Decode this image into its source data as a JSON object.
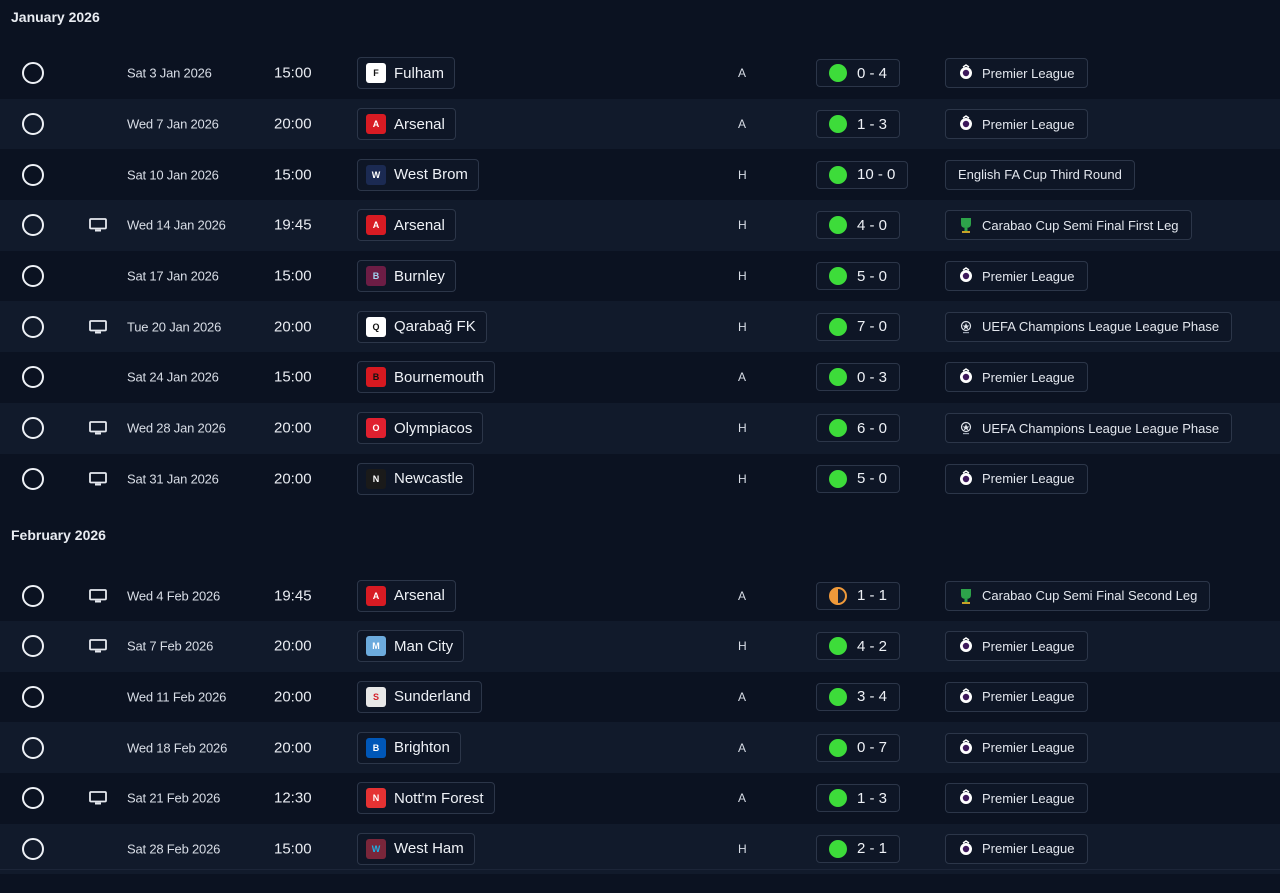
{
  "colors": {
    "win": "#3ddc3a",
    "draw": "#f09a3a",
    "background": "#0b1221",
    "row_alt": "#111a2b"
  },
  "months": [
    {
      "label": "January 2026",
      "fixtures": [
        {
          "date": "Sat 3 Jan 2026",
          "time": "15:00",
          "tv": false,
          "opponent": "Fulham",
          "crest": "fulham-crest-icon",
          "venue": "A",
          "result": "0 - 4",
          "outcome": "win",
          "competition": "Premier League",
          "comp_icon": "premier-league-icon"
        },
        {
          "date": "Wed 7 Jan 2026",
          "time": "20:00",
          "tv": false,
          "opponent": "Arsenal",
          "crest": "arsenal-crest-icon",
          "venue": "A",
          "result": "1 - 3",
          "outcome": "win",
          "competition": "Premier League",
          "comp_icon": "premier-league-icon"
        },
        {
          "date": "Sat 10 Jan 2026",
          "time": "15:00",
          "tv": false,
          "opponent": "West Brom",
          "crest": "west-brom-crest-icon",
          "venue": "H",
          "result": "10 - 0",
          "outcome": "win",
          "competition": "English FA Cup Third Round",
          "comp_icon": ""
        },
        {
          "date": "Wed 14 Jan 2026",
          "time": "19:45",
          "tv": true,
          "opponent": "Arsenal",
          "crest": "arsenal-crest-icon",
          "venue": "H",
          "result": "4 - 0",
          "outcome": "win",
          "competition": "Carabao Cup Semi Final First Leg",
          "comp_icon": "carabao-cup-icon"
        },
        {
          "date": "Sat 17 Jan 2026",
          "time": "15:00",
          "tv": false,
          "opponent": "Burnley",
          "crest": "burnley-crest-icon",
          "venue": "H",
          "result": "5 - 0",
          "outcome": "win",
          "competition": "Premier League",
          "comp_icon": "premier-league-icon"
        },
        {
          "date": "Tue 20 Jan 2026",
          "time": "20:00",
          "tv": true,
          "opponent": "Qarabağ FK",
          "crest": "qarabag-crest-icon",
          "venue": "H",
          "result": "7 - 0",
          "outcome": "win",
          "competition": "UEFA Champions League League Phase",
          "comp_icon": "champions-league-icon"
        },
        {
          "date": "Sat 24 Jan 2026",
          "time": "15:00",
          "tv": false,
          "opponent": "Bournemouth",
          "crest": "bournemouth-crest-icon",
          "venue": "A",
          "result": "0 - 3",
          "outcome": "win",
          "competition": "Premier League",
          "comp_icon": "premier-league-icon"
        },
        {
          "date": "Wed 28 Jan 2026",
          "time": "20:00",
          "tv": true,
          "opponent": "Olympiacos",
          "crest": "olympiacos-crest-icon",
          "venue": "H",
          "result": "6 - 0",
          "outcome": "win",
          "competition": "UEFA Champions League League Phase",
          "comp_icon": "champions-league-icon"
        },
        {
          "date": "Sat 31 Jan 2026",
          "time": "20:00",
          "tv": true,
          "opponent": "Newcastle",
          "crest": "newcastle-crest-icon",
          "venue": "H",
          "result": "5 - 0",
          "outcome": "win",
          "competition": "Premier League",
          "comp_icon": "premier-league-icon"
        }
      ]
    },
    {
      "label": "February 2026",
      "fixtures": [
        {
          "date": "Wed 4 Feb 2026",
          "time": "19:45",
          "tv": true,
          "opponent": "Arsenal",
          "crest": "arsenal-crest-icon",
          "venue": "A",
          "result": "1 - 1",
          "outcome": "draw",
          "competition": "Carabao Cup Semi Final Second Leg",
          "comp_icon": "carabao-cup-icon"
        },
        {
          "date": "Sat 7 Feb 2026",
          "time": "20:00",
          "tv": true,
          "opponent": "Man City",
          "crest": "man-city-crest-icon",
          "venue": "H",
          "result": "4 - 2",
          "outcome": "win",
          "competition": "Premier League",
          "comp_icon": "premier-league-icon"
        },
        {
          "date": "Wed 11 Feb 2026",
          "time": "20:00",
          "tv": false,
          "opponent": "Sunderland",
          "crest": "sunderland-crest-icon",
          "venue": "A",
          "result": "3 - 4",
          "outcome": "win",
          "competition": "Premier League",
          "comp_icon": "premier-league-icon"
        },
        {
          "date": "Wed 18 Feb 2026",
          "time": "20:00",
          "tv": false,
          "opponent": "Brighton",
          "crest": "brighton-crest-icon",
          "venue": "A",
          "result": "0 - 7",
          "outcome": "win",
          "competition": "Premier League",
          "comp_icon": "premier-league-icon"
        },
        {
          "date": "Sat 21 Feb 2026",
          "time": "12:30",
          "tv": true,
          "opponent": "Nott'm Forest",
          "crest": "nottm-forest-crest-icon",
          "venue": "A",
          "result": "1 - 3",
          "outcome": "win",
          "competition": "Premier League",
          "comp_icon": "premier-league-icon"
        },
        {
          "date": "Sat 28 Feb 2026",
          "time": "15:00",
          "tv": false,
          "opponent": "West Ham",
          "crest": "west-ham-crest-icon",
          "venue": "H",
          "result": "2 - 1",
          "outcome": "win",
          "competition": "Premier League",
          "comp_icon": "premier-league-icon"
        }
      ]
    }
  ]
}
